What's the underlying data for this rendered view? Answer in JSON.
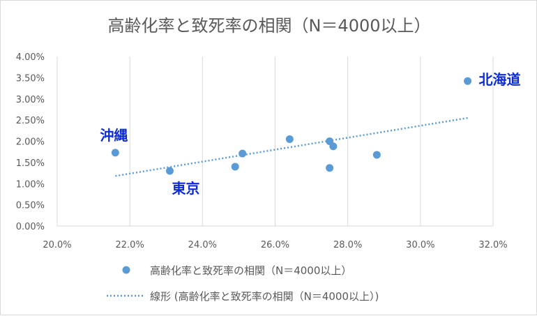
{
  "chart_data": {
    "type": "scatter",
    "title": "高齢化率と致死率の相関（N＝4000以上）",
    "xlabel": "",
    "ylabel": "",
    "xlim": [
      0.2,
      0.32
    ],
    "ylim": [
      0.0,
      0.04
    ],
    "x_ticks": [
      "20.0%",
      "22.0%",
      "24.0%",
      "26.0%",
      "28.0%",
      "30.0%",
      "32.0%"
    ],
    "y_ticks": [
      "0.00%",
      "0.50%",
      "1.00%",
      "1.50%",
      "2.00%",
      "2.50%",
      "3.00%",
      "3.50%",
      "4.00%"
    ],
    "grid": {
      "vertical": true,
      "horizontal": false
    },
    "legend_position": "bottom",
    "colors": {
      "points": "#5b9bd5",
      "trendline": "#5b9bd5",
      "annotations": "#0a2bd6"
    },
    "series": [
      {
        "name": "高齢化率と致死率の相関（N＝4000以上）",
        "points": [
          {
            "x": 0.216,
            "y": 0.0173
          },
          {
            "x": 0.231,
            "y": 0.013
          },
          {
            "x": 0.249,
            "y": 0.014
          },
          {
            "x": 0.251,
            "y": 0.0171
          },
          {
            "x": 0.264,
            "y": 0.0205
          },
          {
            "x": 0.275,
            "y": 0.02
          },
          {
            "x": 0.275,
            "y": 0.0137
          },
          {
            "x": 0.276,
            "y": 0.0188
          },
          {
            "x": 0.288,
            "y": 0.0168
          },
          {
            "x": 0.313,
            "y": 0.0342
          }
        ]
      }
    ],
    "trendline": {
      "name": "線形 (高齢化率と致死率の相関（N＝4000以上）)",
      "style": "dotted",
      "start": {
        "x": 0.216,
        "y": 0.0118
      },
      "end": {
        "x": 0.313,
        "y": 0.0255
      }
    },
    "annotations": [
      {
        "text": "北海道",
        "x": 0.313,
        "y": 0.0342
      },
      {
        "text": "沖縄",
        "x": 0.216,
        "y": 0.0173
      },
      {
        "text": "東京",
        "x": 0.231,
        "y": 0.013
      }
    ]
  }
}
